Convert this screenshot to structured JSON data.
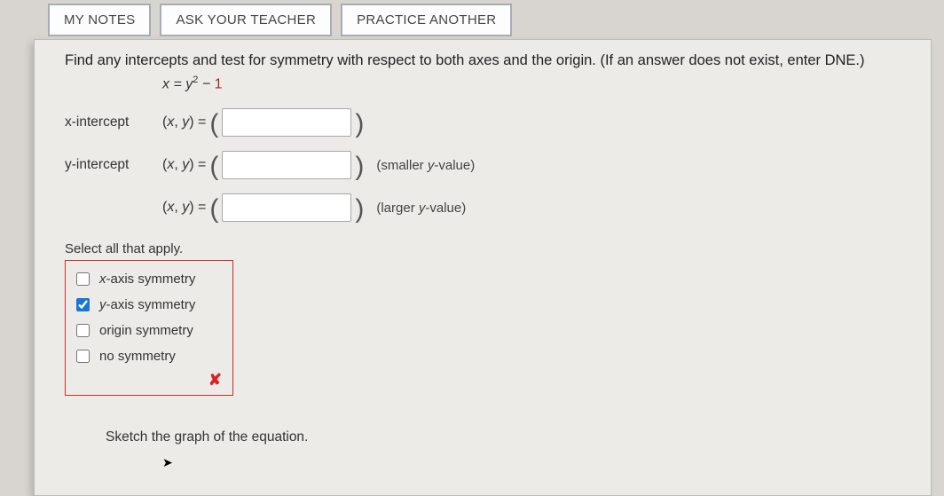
{
  "tabs": {
    "myNotes": "MY NOTES",
    "askTeacher": "ASK YOUR TEACHER",
    "practiceAnother": "PRACTICE ANOTHER"
  },
  "problem": {
    "instructions": "Find any intercepts and test for symmetry with respect to both axes and the origin. (If an answer does not exist, enter DNE.)",
    "equation_lhs": "x",
    "equation_rhs_base": "y",
    "equation_rhs_exp": "2",
    "equation_rhs_const": "1"
  },
  "intercepts": {
    "x_label": "x-intercept",
    "y_label": "y-intercept",
    "xy_text": "(x, y) = ",
    "hint_smaller_pre": "(smaller ",
    "hint_smaller_var": "y",
    "hint_smaller_post": "-value)",
    "hint_larger_pre": "(larger ",
    "hint_larger_var": "y",
    "hint_larger_post": "-value)",
    "x_value": "",
    "y_value_small": "",
    "y_value_large": ""
  },
  "symmetry": {
    "select_label": "Select all that apply.",
    "options": [
      {
        "label_pre": "x",
        "label_post": "-axis symmetry",
        "checked": false
      },
      {
        "label_pre": "y",
        "label_post": "-axis symmetry",
        "checked": true
      },
      {
        "label_pre": "",
        "label_post": "origin symmetry",
        "checked": false
      },
      {
        "label_pre": "",
        "label_post": "no symmetry",
        "checked": false
      }
    ],
    "feedback_mark": "✘"
  },
  "sketch": {
    "text": "Sketch the graph of the equation."
  },
  "colors": {
    "page_bg": "#d8d5d0",
    "card_bg": "#ecebe8",
    "tab_border": "#a8acb3",
    "error_border": "#cb2d2d",
    "accent_check": "#1976d2",
    "equation_const": "#9b2b2b"
  }
}
